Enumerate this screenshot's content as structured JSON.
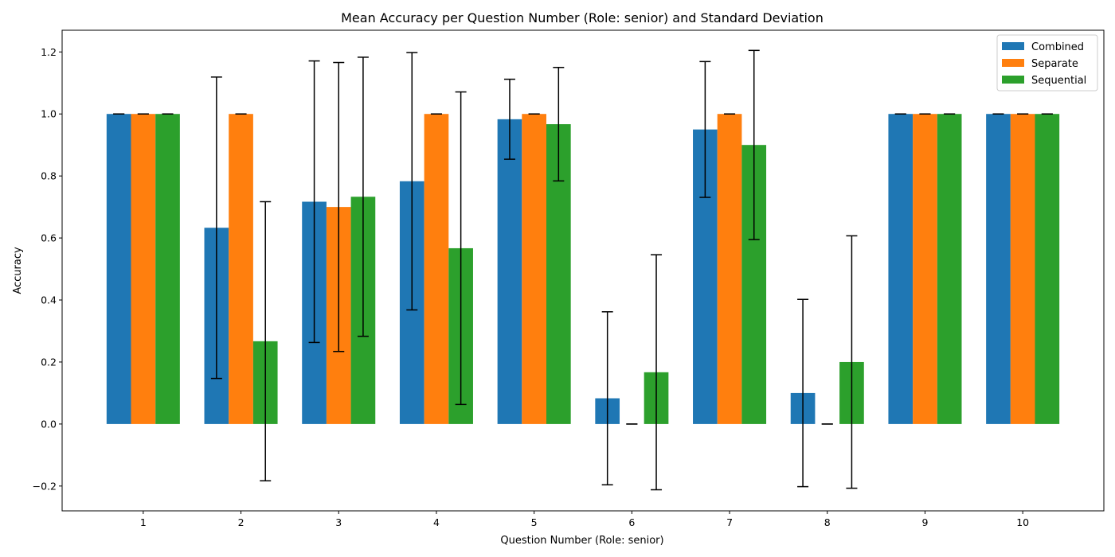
{
  "chart_data": {
    "type": "bar",
    "title": "Mean Accuracy per Question Number (Role: senior) and Standard Deviation",
    "xlabel": "Question Number (Role: senior)",
    "ylabel": "Accuracy",
    "categories": [
      "1",
      "2",
      "3",
      "4",
      "5",
      "6",
      "7",
      "8",
      "9",
      "10"
    ],
    "ylim": [
      -0.28,
      1.27
    ],
    "yticks": [
      -0.2,
      0.0,
      0.2,
      0.4,
      0.6,
      0.8,
      1.0,
      1.2
    ],
    "ytick_labels": [
      "−0.2",
      "0.0",
      "0.2",
      "0.4",
      "0.6",
      "0.8",
      "1.0",
      "1.2"
    ],
    "grid": false,
    "legend_position": "top-right",
    "series": [
      {
        "name": "Combined",
        "color": "#1f77b4",
        "values": [
          1.0,
          0.633,
          0.717,
          0.783,
          0.983,
          0.083,
          0.95,
          0.1,
          1.0,
          1.0
        ],
        "std": [
          0.0,
          0.486,
          0.454,
          0.415,
          0.129,
          0.279,
          0.219,
          0.302,
          0.0,
          0.0
        ]
      },
      {
        "name": "Separate",
        "color": "#ff7f0e",
        "values": [
          1.0,
          1.0,
          0.7,
          1.0,
          1.0,
          0.0,
          1.0,
          0.0,
          1.0,
          1.0
        ],
        "std": [
          0.0,
          0.0,
          0.466,
          0.0,
          0.0,
          0.0,
          0.0,
          0.0,
          0.0,
          0.0
        ]
      },
      {
        "name": "Sequential",
        "color": "#2ca02c",
        "values": [
          1.0,
          0.267,
          0.733,
          0.567,
          0.967,
          0.167,
          0.9,
          0.2,
          1.0,
          1.0
        ],
        "std": [
          0.0,
          0.45,
          0.45,
          0.504,
          0.183,
          0.379,
          0.305,
          0.407,
          0.0,
          0.0
        ]
      }
    ]
  }
}
